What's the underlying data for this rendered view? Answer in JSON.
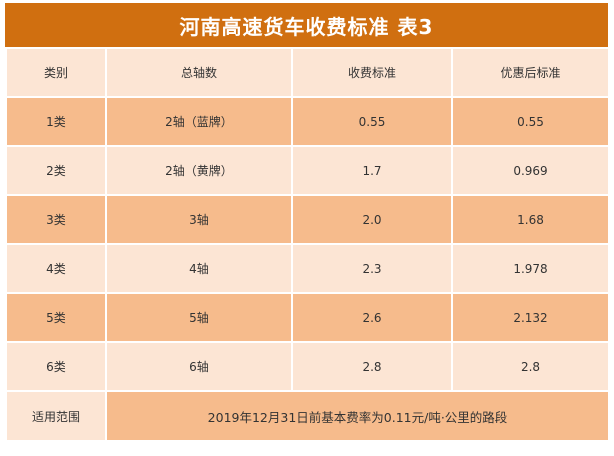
{
  "title": "河南高速货车收费标准 表3",
  "headers": [
    "类别",
    "总轴数",
    "收费标准",
    "优惠后标准"
  ],
  "rows": [
    [
      "1类",
      "2轴（蓝牌）",
      "0.55",
      "0.55"
    ],
    [
      "2类",
      "2轴（黄牌）",
      "1.7",
      "0.969"
    ],
    [
      "3类",
      "3轴",
      "2.0",
      "1.68"
    ],
    [
      "4类",
      "4轴",
      "2.3",
      "1.978"
    ],
    [
      "5类",
      "5轴",
      "2.6",
      "2.132"
    ],
    [
      "6类",
      "6轴",
      "2.8",
      "2.8"
    ]
  ],
  "footer": {
    "label": "适用范围",
    "value": "2019年12月31日前基本费率为0.11元/吨·公里的路段"
  }
}
